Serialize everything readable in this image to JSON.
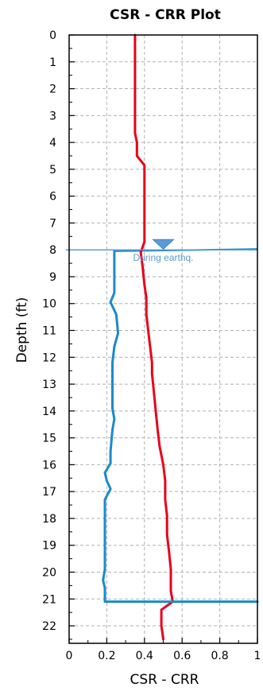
{
  "chart_data": {
    "type": "line",
    "title": "CSR - CRR Plot",
    "xlabel": "CSR - CRR",
    "ylabel": "Depth (ft)",
    "xlim": [
      0,
      1
    ],
    "ylim": [
      22.65,
      0
    ],
    "x_ticks": [
      "0",
      "0.2",
      "0.4",
      "0.6",
      "0.8",
      "1"
    ],
    "y_ticks": [
      "0",
      "1",
      "2",
      "3",
      "4",
      "5",
      "6",
      "7",
      "8",
      "9",
      "10",
      "11",
      "12",
      "13",
      "14",
      "15",
      "16",
      "17",
      "18",
      "19",
      "20",
      "21",
      "22"
    ],
    "grid": true,
    "colors": {
      "CSR": "#e8001c",
      "CRR": "#1a8acb",
      "water": "#5b9bd5",
      "grid": "#b0b0b0"
    },
    "series": [
      {
        "key": "CSR",
        "points": [
          [
            0.35,
            0
          ],
          [
            0.35,
            3.65
          ],
          [
            0.36,
            4
          ],
          [
            0.36,
            4.35
          ],
          [
            0.36,
            4.5
          ],
          [
            0.4,
            4.85
          ],
          [
            0.4,
            7
          ],
          [
            0.4,
            7.7
          ],
          [
            0.38,
            8.1
          ],
          [
            0.39,
            8.6
          ],
          [
            0.4,
            9.3
          ],
          [
            0.41,
            9.8
          ],
          [
            0.41,
            10.4
          ],
          [
            0.42,
            11
          ],
          [
            0.43,
            11.6
          ],
          [
            0.44,
            12.2
          ],
          [
            0.44,
            12.6
          ],
          [
            0.45,
            13.3
          ],
          [
            0.46,
            14
          ],
          [
            0.47,
            14.7
          ],
          [
            0.48,
            15.3
          ],
          [
            0.5,
            16
          ],
          [
            0.51,
            16.6
          ],
          [
            0.51,
            17.3
          ],
          [
            0.52,
            17.9
          ],
          [
            0.52,
            18.6
          ],
          [
            0.53,
            19.2
          ],
          [
            0.54,
            19.9
          ],
          [
            0.54,
            20.7
          ],
          [
            0.55,
            21.1
          ],
          [
            0.49,
            21.4
          ],
          [
            0.49,
            22
          ],
          [
            0.5,
            22.5
          ]
        ]
      },
      {
        "key": "CRR",
        "points": [
          [
            0.24,
            8.05
          ],
          [
            0.24,
            9.6
          ],
          [
            0.22,
            9.95
          ],
          [
            0.25,
            10.4
          ],
          [
            0.26,
            11.1
          ],
          [
            0.24,
            11.6
          ],
          [
            0.23,
            12.2
          ],
          [
            0.23,
            13.9
          ],
          [
            0.24,
            14.3
          ],
          [
            0.23,
            14.7
          ],
          [
            0.22,
            15.5
          ],
          [
            0.22,
            15.95
          ],
          [
            0.19,
            16.3
          ],
          [
            0.2,
            16.6
          ],
          [
            0.22,
            16.9
          ],
          [
            0.19,
            17.3
          ],
          [
            0.19,
            19.9
          ],
          [
            0.18,
            20.3
          ],
          [
            0.19,
            20.6
          ],
          [
            0.19,
            21.1
          ],
          [
            1.0,
            21.1
          ]
        ]
      }
    ],
    "crr_top_line": [
      [
        0.24,
        8.05
      ],
      [
        1.0,
        7.97
      ]
    ],
    "water_table": {
      "depth": 8.0,
      "marker_x": 0.5,
      "label": "During earthq."
    }
  }
}
